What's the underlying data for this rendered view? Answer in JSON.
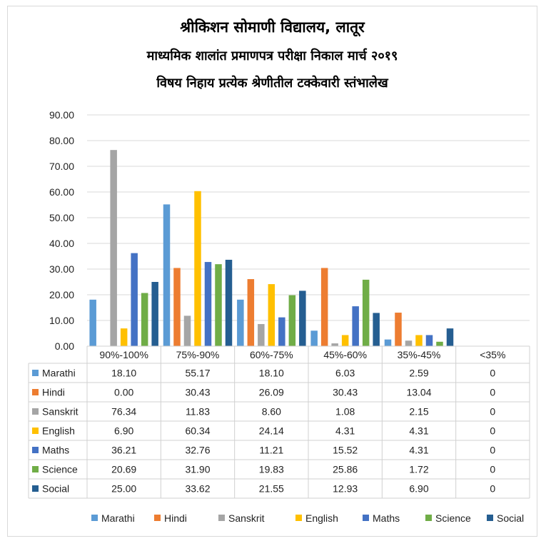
{
  "title_lines": [
    "श्रीकिशन सोमाणी विद्यालय, लातूर",
    "माध्यमिक शालांत प्रमाणपत्र परीक्षा निकाल  मार्च  २०१९",
    "विषय  निहाय  प्रत्येक  श्रेणीतील  टक्केवारी  स्तंभालेख"
  ],
  "chart_data": {
    "type": "bar",
    "categories": [
      "90%-100%",
      "75%-90%",
      "60%-75%",
      "45%-60%",
      "35%-45%",
      "<35%"
    ],
    "ylim": [
      0,
      90
    ],
    "y_ticks": [
      "0.00",
      "10.00",
      "20.00",
      "30.00",
      "40.00",
      "50.00",
      "60.00",
      "70.00",
      "80.00",
      "90.00"
    ],
    "grid": true,
    "legend_position": "bottom",
    "data_table": true,
    "series": [
      {
        "name": "Marathi",
        "color": "#5b9bd5",
        "values": [
          18.1,
          55.17,
          18.1,
          6.03,
          2.59,
          0
        ],
        "labels": [
          "18.10",
          "55.17",
          "18.10",
          "6.03",
          "2.59",
          "0"
        ]
      },
      {
        "name": "Hindi",
        "color": "#ed7d31",
        "values": [
          0.0,
          30.43,
          26.09,
          30.43,
          13.04,
          0
        ],
        "labels": [
          "0.00",
          "30.43",
          "26.09",
          "30.43",
          "13.04",
          "0"
        ]
      },
      {
        "name": "Sanskrit",
        "color": "#a5a5a5",
        "values": [
          76.34,
          11.83,
          8.6,
          1.08,
          2.15,
          0
        ],
        "labels": [
          "76.34",
          "11.83",
          "8.60",
          "1.08",
          "2.15",
          "0"
        ]
      },
      {
        "name": "English",
        "color": "#ffc000",
        "values": [
          6.9,
          60.34,
          24.14,
          4.31,
          4.31,
          0
        ],
        "labels": [
          "6.90",
          "60.34",
          "24.14",
          "4.31",
          "4.31",
          "0"
        ]
      },
      {
        "name": "Maths",
        "color": "#4472c4",
        "values": [
          36.21,
          32.76,
          11.21,
          15.52,
          4.31,
          0
        ],
        "labels": [
          "36.21",
          "32.76",
          "11.21",
          "15.52",
          "4.31",
          "0"
        ]
      },
      {
        "name": "Science",
        "color": "#70ad47",
        "values": [
          20.69,
          31.9,
          19.83,
          25.86,
          1.72,
          0
        ],
        "labels": [
          "20.69",
          "31.90",
          "19.83",
          "25.86",
          "1.72",
          "0"
        ]
      },
      {
        "name": "Social",
        "color": "#255e91",
        "values": [
          25.0,
          33.62,
          21.55,
          12.93,
          6.9,
          0
        ],
        "labels": [
          "25.00",
          "33.62",
          "21.55",
          "12.93",
          "6.90",
          "0"
        ]
      }
    ]
  }
}
